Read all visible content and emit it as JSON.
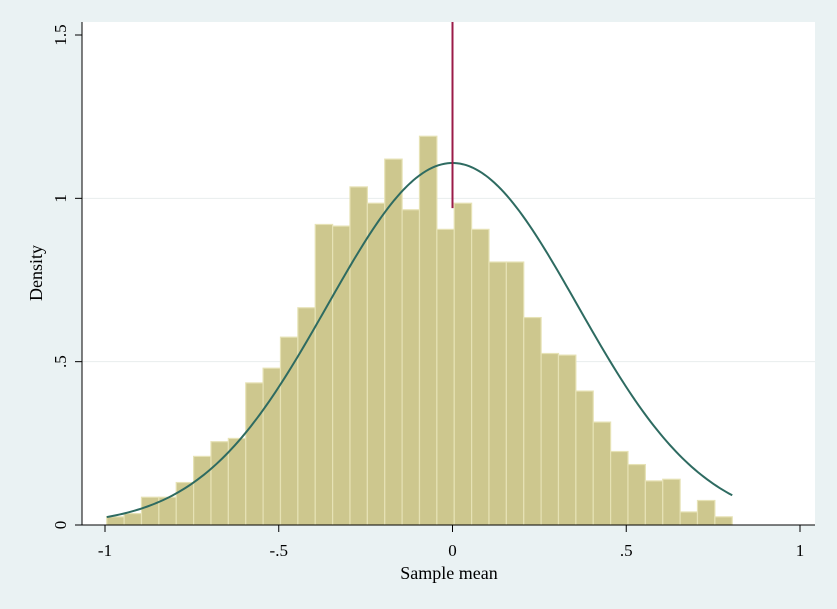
{
  "chart_data": {
    "type": "bar",
    "title": "",
    "xlabel": "Sample mean",
    "ylabel": "Density",
    "xlim": [
      -1,
      1
    ],
    "ylim": [
      0,
      1.5
    ],
    "x_ticks": [
      {
        "value": -1,
        "label": "-1"
      },
      {
        "value": -0.5,
        "label": "-.5"
      },
      {
        "value": 0,
        "label": "0"
      },
      {
        "value": 0.5,
        "label": ".5"
      },
      {
        "value": 1,
        "label": "1"
      }
    ],
    "y_ticks": [
      {
        "value": 0,
        "label": "0"
      },
      {
        "value": 0.5,
        "label": ".5"
      },
      {
        "value": 1,
        "label": "1"
      },
      {
        "value": 1.5,
        "label": "1.5"
      }
    ],
    "grid": "horizontal",
    "histogram": {
      "bin_start": -0.995,
      "bin_width": 0.05,
      "values": [
        0.025,
        0.035,
        0.085,
        0.085,
        0.13,
        0.21,
        0.255,
        0.265,
        0.435,
        0.48,
        0.575,
        0.665,
        0.92,
        0.915,
        1.035,
        0.985,
        1.12,
        0.965,
        1.19,
        0.905,
        0.985,
        0.905,
        0.805,
        0.805,
        0.635,
        0.525,
        0.52,
        0.41,
        0.315,
        0.225,
        0.185,
        0.135,
        0.14,
        0.04,
        0.075,
        0.025
      ],
      "color": "#cdc78e",
      "edge_color": "#e6e2b5"
    },
    "normal_curve": {
      "mean": 0,
      "sd": 0.36,
      "color": "#2e6b61"
    },
    "reference_line": {
      "x": 0,
      "ymin": 0.97,
      "ymax": 1.55,
      "color": "#9b1b48"
    }
  }
}
